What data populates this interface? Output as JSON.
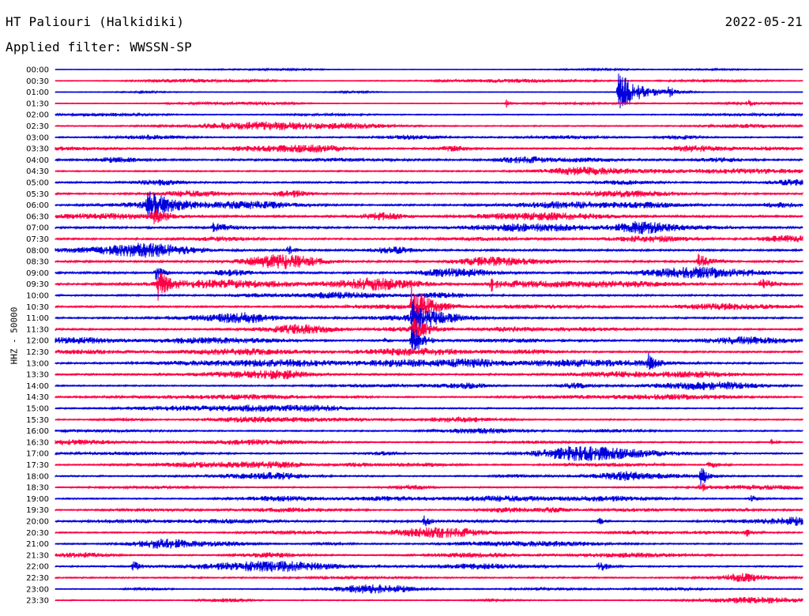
{
  "header": {
    "station": "HT Paliouri (Halkidiki)",
    "date": "2022-05-21",
    "filter": "Applied filter: WWSSN-SP"
  },
  "chart_data": {
    "type": "line",
    "ylabel": "HHZ - 50000",
    "colors": {
      "even": "#0000dd",
      "odd": "#ff0044"
    },
    "rows": [
      "00:00",
      "00:30",
      "01:00",
      "01:30",
      "02:00",
      "02:30",
      "03:00",
      "03:30",
      "04:00",
      "04:30",
      "05:00",
      "05:30",
      "06:00",
      "06:30",
      "07:00",
      "07:30",
      "08:00",
      "08:30",
      "09:00",
      "09:30",
      "10:00",
      "10:30",
      "11:00",
      "11:30",
      "12:00",
      "12:30",
      "13:00",
      "13:30",
      "14:00",
      "14:30",
      "15:00",
      "15:30",
      "16:00",
      "16:30",
      "17:00",
      "17:30",
      "18:00",
      "18:30",
      "19:00",
      "19:30",
      "20:00",
      "20:30",
      "21:00",
      "21:30",
      "22:00",
      "22:30",
      "23:00",
      "23:30"
    ],
    "minutes_per_row": 30,
    "noise_amplitude": [
      0.5,
      1.2,
      1.0,
      1.0,
      1.5,
      1.8,
      2.0,
      2.5,
      2.5,
      2.0,
      2.5,
      2.5,
      2.5,
      3.0,
      3.0,
      2.5,
      3.0,
      3.0,
      3.0,
      3.0,
      2.5,
      2.5,
      2.5,
      2.5,
      2.5,
      2.5,
      2.5,
      2.5,
      2.0,
      2.0,
      2.0,
      2.0,
      2.0,
      2.0,
      2.0,
      2.0,
      2.0,
      2.0,
      2.0,
      2.0,
      2.0,
      2.0,
      2.0,
      2.0,
      2.0,
      2.0,
      1.5,
      1.5
    ],
    "events": [
      {
        "row": 2,
        "minute": 22.6,
        "amp": 28,
        "dur": 2.2
      },
      {
        "row": 2,
        "minute": 24.6,
        "amp": 5,
        "dur": 1.0
      },
      {
        "row": 3,
        "minute": 18.1,
        "amp": 6,
        "dur": 0.5
      },
      {
        "row": 3,
        "minute": 27.8,
        "amp": 5,
        "dur": 0.5
      },
      {
        "row": 12,
        "minute": 3.7,
        "amp": 18,
        "dur": 2.0
      },
      {
        "row": 13,
        "minute": 3.9,
        "amp": 10,
        "dur": 1.5
      },
      {
        "row": 14,
        "minute": 6.3,
        "amp": 6,
        "dur": 2.5
      },
      {
        "row": 16,
        "minute": 9.3,
        "amp": 8,
        "dur": 0.8
      },
      {
        "row": 17,
        "minute": 25.8,
        "amp": 10,
        "dur": 1.5
      },
      {
        "row": 18,
        "minute": 4.0,
        "amp": 14,
        "dur": 0.8
      },
      {
        "row": 19,
        "minute": 4.1,
        "amp": 20,
        "dur": 1.0
      },
      {
        "row": 19,
        "minute": 17.5,
        "amp": 8,
        "dur": 0.6
      },
      {
        "row": 19,
        "minute": 28.3,
        "amp": 8,
        "dur": 1.5
      },
      {
        "row": 21,
        "minute": 14.3,
        "amp": 30,
        "dur": 2.0
      },
      {
        "row": 22,
        "minute": 14.3,
        "amp": 22,
        "dur": 2.0
      },
      {
        "row": 23,
        "minute": 14.3,
        "amp": 18,
        "dur": 1.8
      },
      {
        "row": 24,
        "minute": 14.3,
        "amp": 22,
        "dur": 1.2
      },
      {
        "row": 24,
        "minute": 13.2,
        "amp": 5,
        "dur": 0.5
      },
      {
        "row": 26,
        "minute": 23.8,
        "amp": 12,
        "dur": 0.8
      },
      {
        "row": 33,
        "minute": 28.7,
        "amp": 5,
        "dur": 0.5
      },
      {
        "row": 35,
        "minute": 26.2,
        "amp": 6,
        "dur": 1.0
      },
      {
        "row": 36,
        "minute": 25.9,
        "amp": 16,
        "dur": 0.7
      },
      {
        "row": 37,
        "minute": 25.9,
        "amp": 8,
        "dur": 0.5
      },
      {
        "row": 38,
        "minute": 27.9,
        "amp": 5,
        "dur": 1.0
      },
      {
        "row": 40,
        "minute": 14.8,
        "amp": 9,
        "dur": 0.5
      },
      {
        "row": 40,
        "minute": 21.8,
        "amp": 8,
        "dur": 0.5
      },
      {
        "row": 41,
        "minute": 27.7,
        "amp": 6,
        "dur": 0.6
      },
      {
        "row": 44,
        "minute": 3.1,
        "amp": 9,
        "dur": 0.7
      },
      {
        "row": 44,
        "minute": 21.8,
        "amp": 9,
        "dur": 1.0
      }
    ]
  }
}
